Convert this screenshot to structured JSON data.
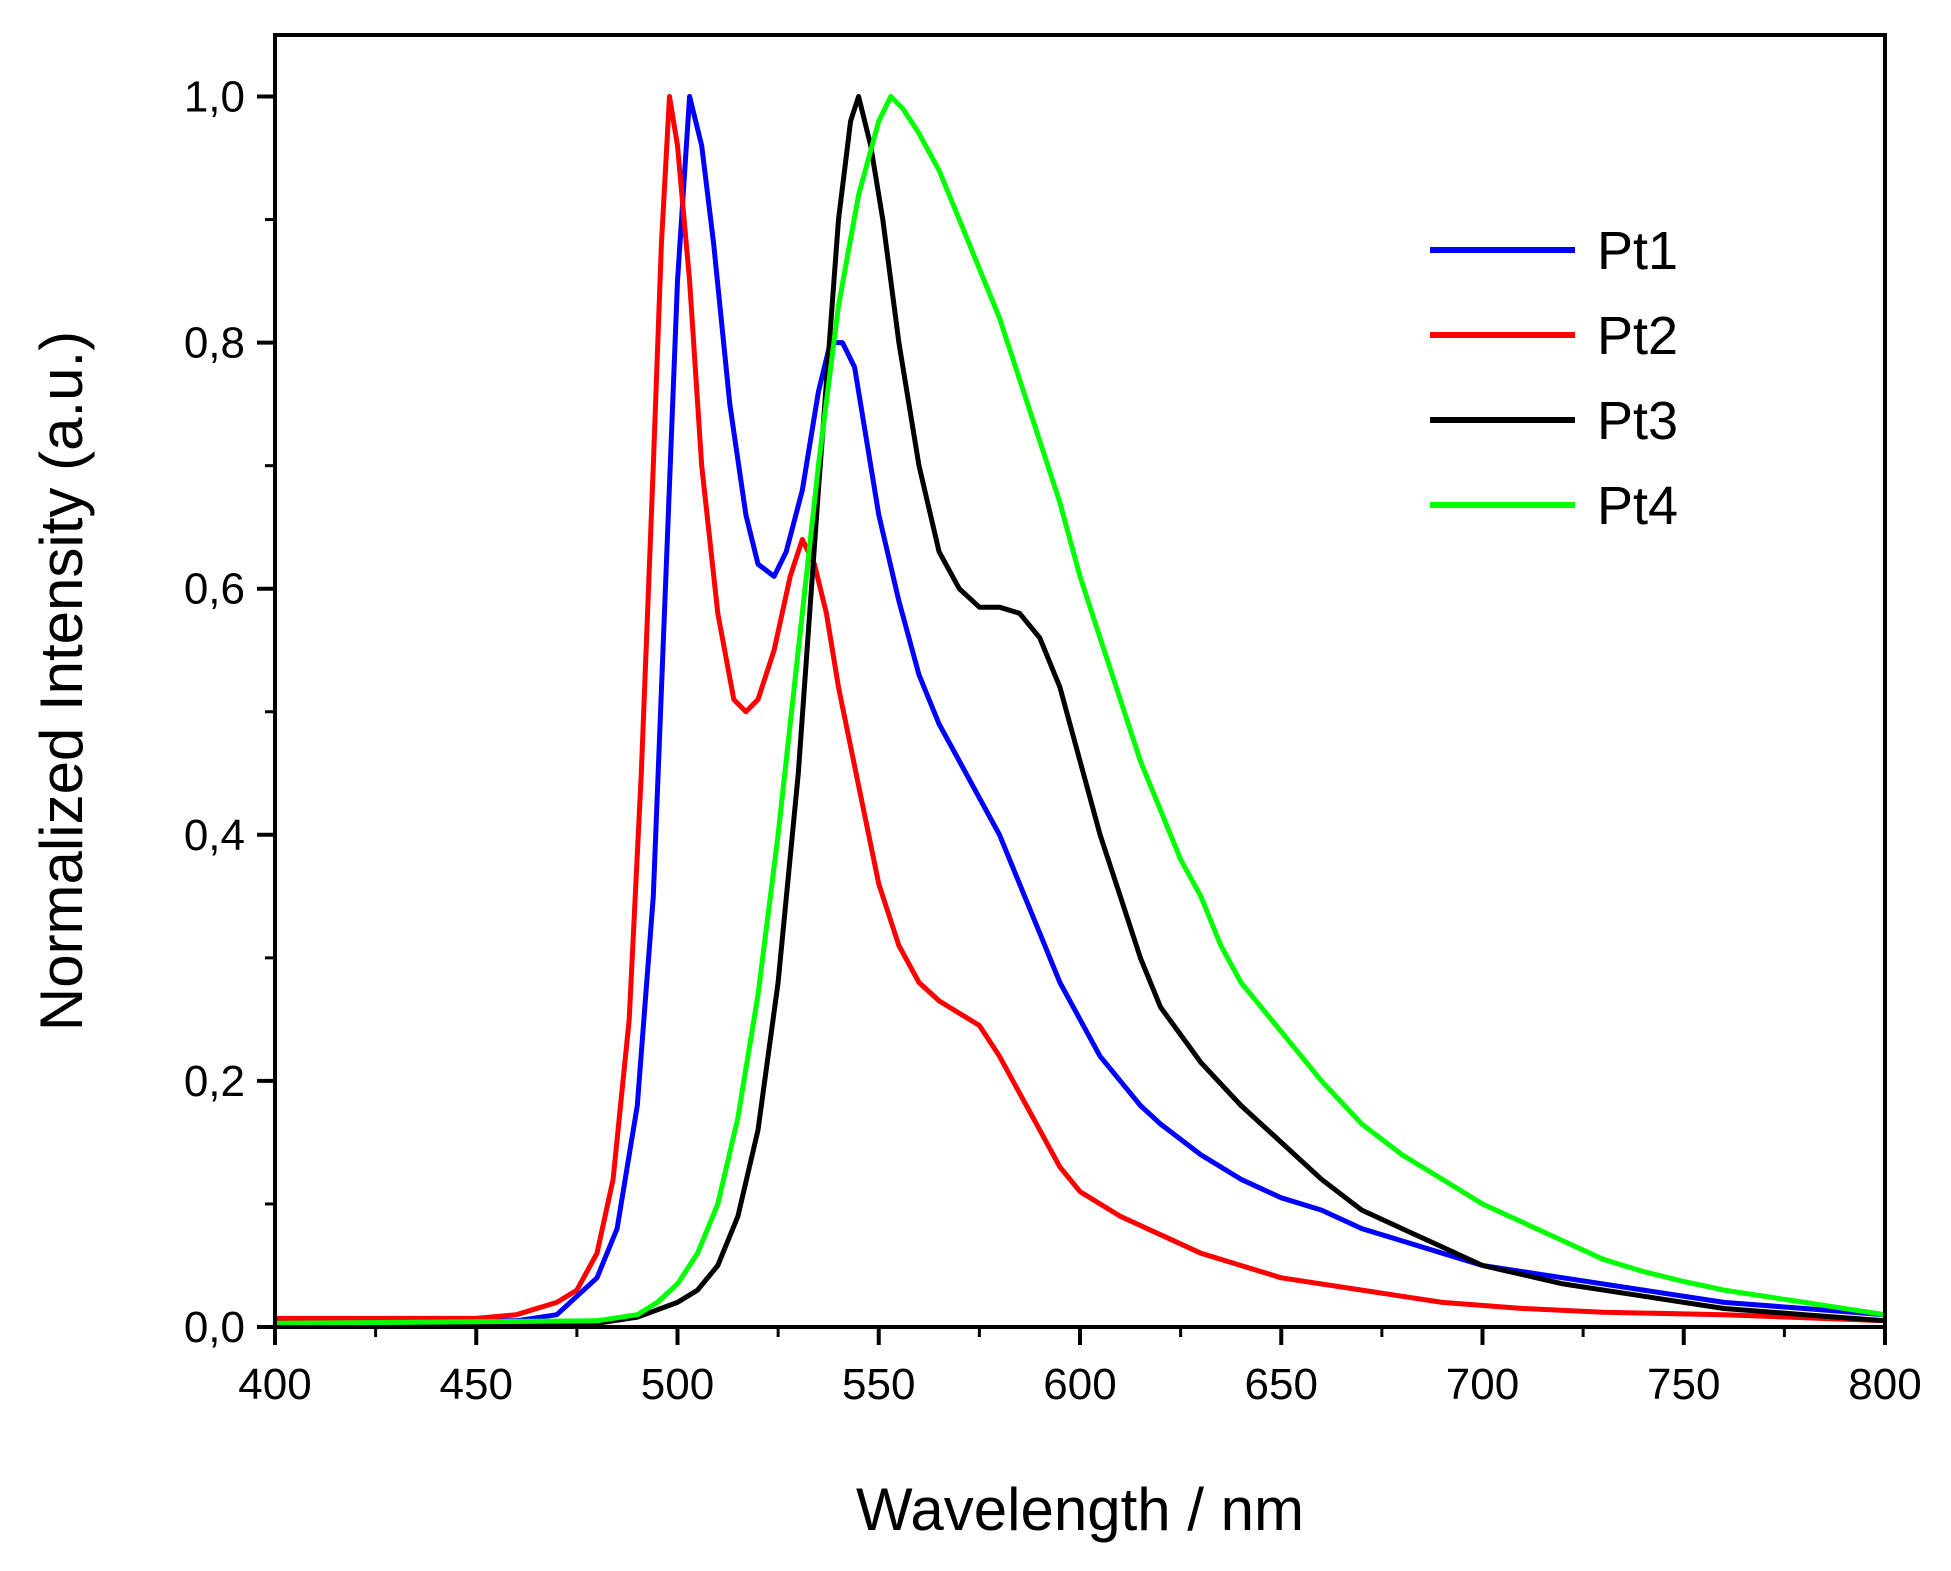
{
  "chart_data": {
    "type": "line",
    "title": "",
    "xlabel": "Wavelength / nm",
    "ylabel": "Normalized Intensity (a.u.)",
    "xlim": [
      400,
      800
    ],
    "ylim": [
      0,
      1.05
    ],
    "x_ticks": [
      400,
      450,
      500,
      550,
      600,
      650,
      700,
      750,
      800
    ],
    "x_tick_labels": [
      "400",
      "450",
      "500",
      "550",
      "600",
      "650",
      "700",
      "750",
      "800"
    ],
    "y_ticks": [
      0,
      0.2,
      0.4,
      0.6,
      0.8,
      1.0
    ],
    "y_tick_labels": [
      "0,0",
      "0,2",
      "0,4",
      "0,6",
      "0,8",
      "1,0"
    ],
    "grid": false,
    "legend_position": "top-right",
    "series": [
      {
        "name": "Pt1",
        "color": "#0000ff",
        "points": [
          [
            400,
            0.005
          ],
          [
            460,
            0.005
          ],
          [
            470,
            0.01
          ],
          [
            480,
            0.04
          ],
          [
            485,
            0.08
          ],
          [
            490,
            0.18
          ],
          [
            494,
            0.35
          ],
          [
            497,
            0.6
          ],
          [
            500,
            0.85
          ],
          [
            503,
            1.0
          ],
          [
            506,
            0.96
          ],
          [
            509,
            0.88
          ],
          [
            513,
            0.75
          ],
          [
            517,
            0.66
          ],
          [
            520,
            0.62
          ],
          [
            524,
            0.61
          ],
          [
            527,
            0.63
          ],
          [
            531,
            0.68
          ],
          [
            535,
            0.76
          ],
          [
            538,
            0.8
          ],
          [
            541,
            0.8
          ],
          [
            544,
            0.78
          ],
          [
            547,
            0.72
          ],
          [
            550,
            0.66
          ],
          [
            555,
            0.59
          ],
          [
            560,
            0.53
          ],
          [
            565,
            0.49
          ],
          [
            570,
            0.46
          ],
          [
            575,
            0.43
          ],
          [
            580,
            0.4
          ],
          [
            585,
            0.36
          ],
          [
            590,
            0.32
          ],
          [
            595,
            0.28
          ],
          [
            600,
            0.25
          ],
          [
            605,
            0.22
          ],
          [
            610,
            0.2
          ],
          [
            615,
            0.18
          ],
          [
            620,
            0.165
          ],
          [
            630,
            0.14
          ],
          [
            640,
            0.12
          ],
          [
            650,
            0.105
          ],
          [
            660,
            0.095
          ],
          [
            670,
            0.08
          ],
          [
            680,
            0.07
          ],
          [
            690,
            0.06
          ],
          [
            700,
            0.05
          ],
          [
            720,
            0.04
          ],
          [
            740,
            0.03
          ],
          [
            760,
            0.02
          ],
          [
            780,
            0.015
          ],
          [
            800,
            0.01
          ]
        ]
      },
      {
        "name": "Pt2",
        "color": "#ff0000",
        "points": [
          [
            400,
            0.007
          ],
          [
            450,
            0.007
          ],
          [
            460,
            0.01
          ],
          [
            470,
            0.02
          ],
          [
            475,
            0.03
          ],
          [
            480,
            0.06
          ],
          [
            484,
            0.12
          ],
          [
            488,
            0.25
          ],
          [
            491,
            0.45
          ],
          [
            494,
            0.7
          ],
          [
            496,
            0.88
          ],
          [
            498,
            1.0
          ],
          [
            500,
            0.96
          ],
          [
            503,
            0.85
          ],
          [
            506,
            0.7
          ],
          [
            510,
            0.58
          ],
          [
            514,
            0.51
          ],
          [
            517,
            0.5
          ],
          [
            520,
            0.51
          ],
          [
            524,
            0.55
          ],
          [
            528,
            0.61
          ],
          [
            531,
            0.64
          ],
          [
            534,
            0.62
          ],
          [
            537,
            0.58
          ],
          [
            540,
            0.52
          ],
          [
            545,
            0.44
          ],
          [
            550,
            0.36
          ],
          [
            555,
            0.31
          ],
          [
            560,
            0.28
          ],
          [
            565,
            0.265
          ],
          [
            570,
            0.255
          ],
          [
            575,
            0.245
          ],
          [
            580,
            0.22
          ],
          [
            585,
            0.19
          ],
          [
            590,
            0.16
          ],
          [
            595,
            0.13
          ],
          [
            600,
            0.11
          ],
          [
            610,
            0.09
          ],
          [
            620,
            0.075
          ],
          [
            630,
            0.06
          ],
          [
            640,
            0.05
          ],
          [
            650,
            0.04
          ],
          [
            670,
            0.03
          ],
          [
            690,
            0.02
          ],
          [
            710,
            0.015
          ],
          [
            730,
            0.012
          ],
          [
            760,
            0.01
          ],
          [
            800,
            0.005
          ]
        ]
      },
      {
        "name": "Pt3",
        "color": "#000000",
        "points": [
          [
            400,
            0.003
          ],
          [
            480,
            0.003
          ],
          [
            490,
            0.008
          ],
          [
            500,
            0.02
          ],
          [
            505,
            0.03
          ],
          [
            510,
            0.05
          ],
          [
            515,
            0.09
          ],
          [
            520,
            0.16
          ],
          [
            525,
            0.28
          ],
          [
            530,
            0.45
          ],
          [
            535,
            0.68
          ],
          [
            540,
            0.9
          ],
          [
            543,
            0.98
          ],
          [
            545,
            1.0
          ],
          [
            548,
            0.96
          ],
          [
            551,
            0.9
          ],
          [
            555,
            0.8
          ],
          [
            560,
            0.7
          ],
          [
            565,
            0.63
          ],
          [
            570,
            0.6
          ],
          [
            575,
            0.585
          ],
          [
            580,
            0.585
          ],
          [
            585,
            0.58
          ],
          [
            590,
            0.56
          ],
          [
            595,
            0.52
          ],
          [
            600,
            0.46
          ],
          [
            605,
            0.4
          ],
          [
            610,
            0.35
          ],
          [
            615,
            0.3
          ],
          [
            620,
            0.26
          ],
          [
            630,
            0.215
          ],
          [
            640,
            0.18
          ],
          [
            650,
            0.15
          ],
          [
            660,
            0.12
          ],
          [
            670,
            0.095
          ],
          [
            680,
            0.08
          ],
          [
            690,
            0.065
          ],
          [
            700,
            0.05
          ],
          [
            720,
            0.035
          ],
          [
            740,
            0.025
          ],
          [
            760,
            0.015
          ],
          [
            780,
            0.01
          ],
          [
            800,
            0.005
          ]
        ]
      },
      {
        "name": "Pt4",
        "color": "#00ff00",
        "points": [
          [
            400,
            0.003
          ],
          [
            480,
            0.005
          ],
          [
            490,
            0.01
          ],
          [
            495,
            0.02
          ],
          [
            500,
            0.035
          ],
          [
            505,
            0.06
          ],
          [
            510,
            0.1
          ],
          [
            515,
            0.17
          ],
          [
            520,
            0.27
          ],
          [
            525,
            0.4
          ],
          [
            530,
            0.55
          ],
          [
            535,
            0.7
          ],
          [
            540,
            0.83
          ],
          [
            545,
            0.92
          ],
          [
            550,
            0.98
          ],
          [
            553,
            1.0
          ],
          [
            556,
            0.99
          ],
          [
            560,
            0.97
          ],
          [
            565,
            0.94
          ],
          [
            570,
            0.9
          ],
          [
            575,
            0.86
          ],
          [
            580,
            0.82
          ],
          [
            585,
            0.77
          ],
          [
            590,
            0.72
          ],
          [
            595,
            0.67
          ],
          [
            600,
            0.61
          ],
          [
            605,
            0.56
          ],
          [
            610,
            0.51
          ],
          [
            615,
            0.46
          ],
          [
            620,
            0.42
          ],
          [
            625,
            0.38
          ],
          [
            630,
            0.35
          ],
          [
            635,
            0.31
          ],
          [
            640,
            0.28
          ],
          [
            650,
            0.24
          ],
          [
            660,
            0.2
          ],
          [
            670,
            0.165
          ],
          [
            680,
            0.14
          ],
          [
            690,
            0.12
          ],
          [
            700,
            0.1
          ],
          [
            710,
            0.085
          ],
          [
            720,
            0.07
          ],
          [
            730,
            0.055
          ],
          [
            740,
            0.045
          ],
          [
            750,
            0.037
          ],
          [
            760,
            0.03
          ],
          [
            780,
            0.02
          ],
          [
            800,
            0.01
          ]
        ]
      }
    ]
  }
}
